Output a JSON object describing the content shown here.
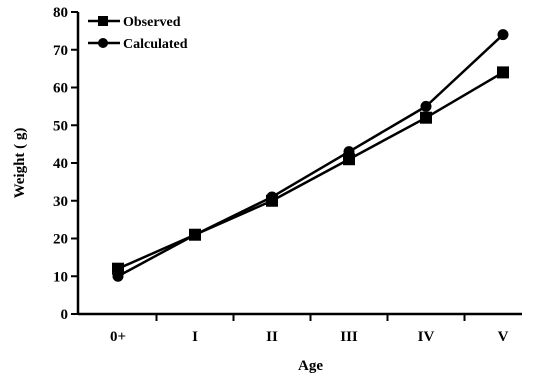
{
  "chart_data": {
    "type": "line",
    "categories": [
      "0+",
      "I",
      "II",
      "III",
      "IV",
      "V"
    ],
    "series": [
      {
        "name": "Observed",
        "marker": "square",
        "values": [
          12,
          21,
          30,
          41,
          52,
          64
        ]
      },
      {
        "name": "Calculated",
        "marker": "circle",
        "values": [
          10,
          21,
          31,
          43,
          55,
          74
        ]
      }
    ],
    "xlabel": "Age",
    "ylabel": "Weight ( g)",
    "ylim": [
      0,
      80
    ],
    "yticks": [
      0,
      10,
      20,
      30,
      40,
      50,
      60,
      70,
      80
    ],
    "grid": false,
    "legend_position": "top-left",
    "line_color": "#000000"
  }
}
